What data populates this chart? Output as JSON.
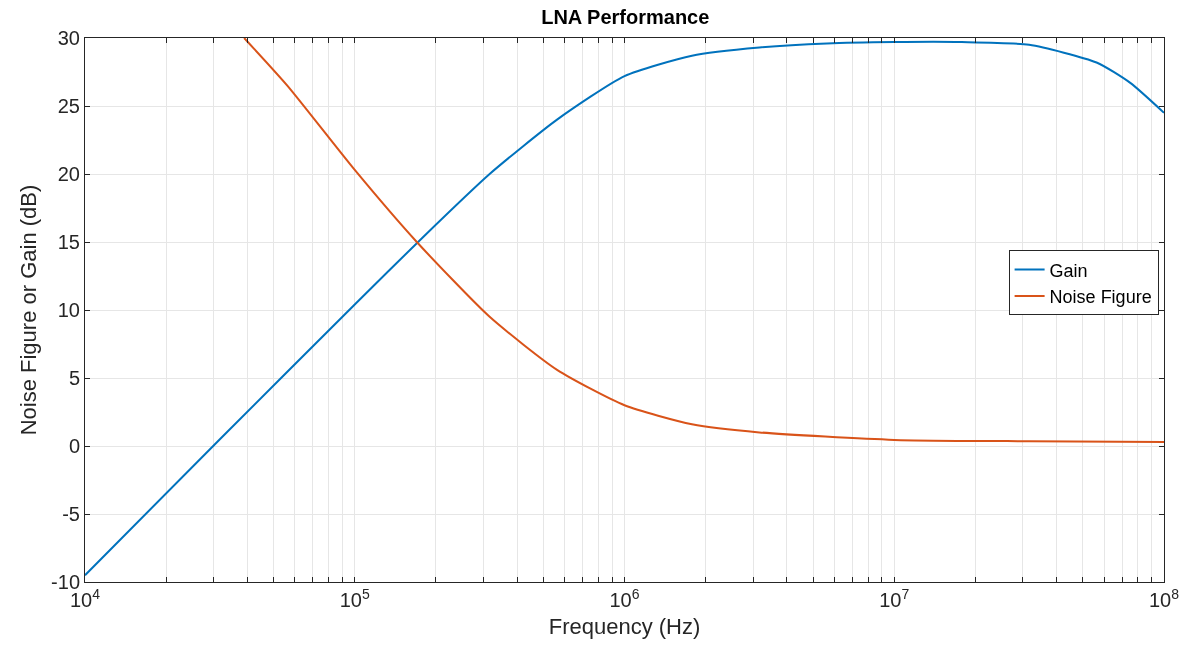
{
  "chart_data": {
    "type": "line",
    "title": "LNA Performance",
    "xlabel": "Frequency (Hz)",
    "ylabel": "Noise Figure or Gain (dB)",
    "log": "x",
    "grid": true,
    "legend": "right",
    "line_style": "solid",
    "marker": "none",
    "xlim": [
      10000,
      100000000
    ],
    "xticks": [
      {
        "value": 10000,
        "label": "10$^{4}$"
      },
      {
        "value": 20000,
        "label": null
      },
      {
        "value": 30000,
        "label": null
      },
      {
        "value": 40000,
        "label": null
      },
      {
        "value": 50000,
        "label": null
      },
      {
        "value": 60000,
        "label": null
      },
      {
        "value": 70000,
        "label": null
      },
      {
        "value": 80000,
        "label": null
      },
      {
        "value": 90000,
        "label": null
      },
      {
        "value": 100000,
        "label": "10$^{5}$"
      },
      {
        "value": 200000,
        "label": null
      },
      {
        "value": 300000,
        "label": null
      },
      {
        "value": 400000,
        "label": null
      },
      {
        "value": 500000,
        "label": null
      },
      {
        "value": 600000,
        "label": null
      },
      {
        "value": 700000,
        "label": null
      },
      {
        "value": 800000,
        "label": null
      },
      {
        "value": 900000,
        "label": null
      },
      {
        "value": 1000000,
        "label": "10$^{6}$"
      },
      {
        "value": 2000000,
        "label": null
      },
      {
        "value": 3000000,
        "label": null
      },
      {
        "value": 4000000,
        "label": null
      },
      {
        "value": 5000000,
        "label": null
      },
      {
        "value": 6000000,
        "label": null
      },
      {
        "value": 7000000,
        "label": null
      },
      {
        "value": 8000000,
        "label": null
      },
      {
        "value": 9000000,
        "label": null
      },
      {
        "value": 10000000,
        "label": "10$^{7}$"
      },
      {
        "value": 20000000,
        "label": null
      },
      {
        "value": 30000000,
        "label": null
      },
      {
        "value": 40000000,
        "label": null
      },
      {
        "value": 50000000,
        "label": null
      },
      {
        "value": 60000000,
        "label": null
      },
      {
        "value": 70000000,
        "label": null
      },
      {
        "value": 80000000,
        "label": null
      },
      {
        "value": 90000000,
        "label": null
      },
      {
        "value": 100000000,
        "label": "10$^{8}$"
      }
    ],
    "ylim": [
      -10,
      30
    ],
    "yticks": [
      -10,
      -5,
      0,
      5,
      10,
      15,
      20,
      25,
      30
    ],
    "series": [
      {
        "name": "Gain",
        "color": "#0072bd",
        "x": [
          10000,
          31623,
          100000,
          177828,
          316228,
          562341,
          1000000,
          1778279,
          3162278,
          5623413,
          10000000,
          17782794,
          31622777,
          56234133,
          74989421,
          100000000
        ],
        "values": [
          -9.5,
          0.5,
          10.4,
          15.3,
          20.0,
          24.0,
          27.2,
          28.7,
          29.3,
          29.6,
          29.7,
          29.7,
          29.5,
          28.2,
          26.7,
          24.5
        ]
      },
      {
        "name": "Noise Figure",
        "color": "#d95319",
        "x": [
          38905,
          56234,
          100000,
          169824,
          316228,
          562341,
          1000000,
          1778279,
          3162278,
          10000000,
          31622777,
          100000000
        ],
        "values": [
          30,
          26.5,
          20.3,
          15.0,
          9.5,
          5.6,
          3.0,
          1.6,
          1.0,
          0.45,
          0.35,
          0.3
        ]
      }
    ]
  }
}
